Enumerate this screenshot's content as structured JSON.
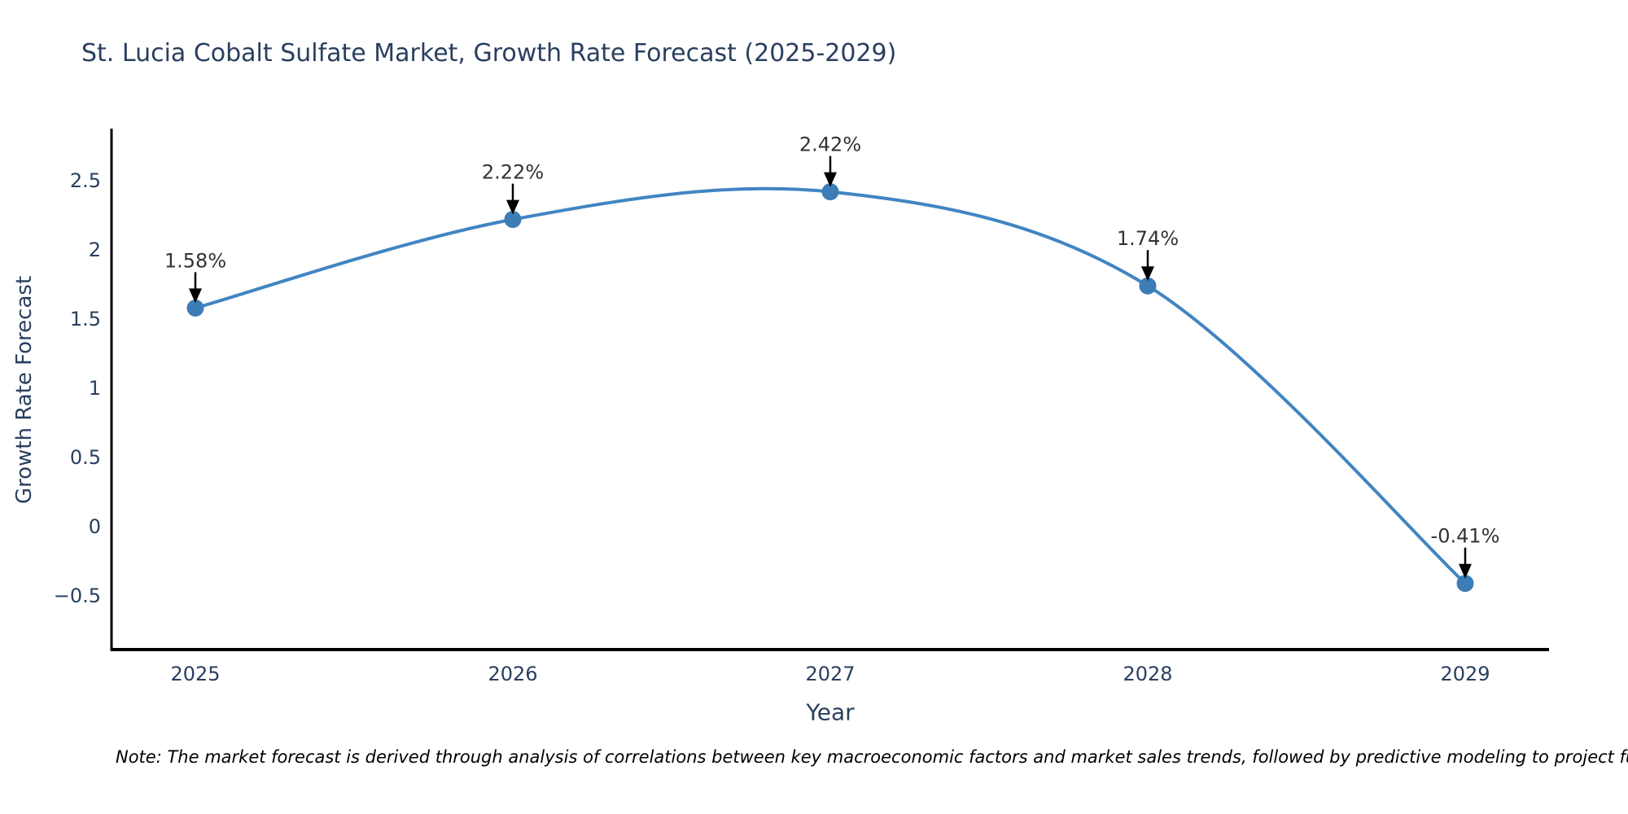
{
  "figure": {
    "note": "Note: The market forecast is derived through analysis of correlations between key macroeconomic factors and market sales trends, followed by predictive modeling to project future sales."
  },
  "chart_data": {
    "type": "line",
    "title": "St. Lucia Cobalt Sulfate Market, Growth Rate Forecast (2025-2029)",
    "xlabel": "Year",
    "ylabel": "Growth Rate Forecast",
    "categories": [
      "2025",
      "2026",
      "2027",
      "2028",
      "2029"
    ],
    "series": [
      {
        "name": "Growth Rate Forecast",
        "values": [
          1.58,
          2.22,
          2.42,
          1.74,
          -0.41
        ],
        "unit": "%"
      }
    ],
    "point_labels": [
      "1.58%",
      "2.22%",
      "2.42%",
      "1.74%",
      "-0.41%"
    ],
    "ytick_values": [
      -0.5,
      0,
      0.5,
      1,
      1.5,
      2,
      2.5
    ],
    "ytick_labels": [
      "−0.5",
      "0",
      "0.5",
      "1",
      "1.5",
      "2",
      "2.5"
    ],
    "ylim": [
      -0.9,
      2.88
    ],
    "line_shape": "spline",
    "marker": "circle",
    "grid": false,
    "legend": "none",
    "annotation_arrows": "black arrow pointing down to each data point",
    "colors": {
      "line": "#4185c2",
      "marker": "#3c7db8",
      "arrow": "#000000",
      "spine": "#000000",
      "title_text": "#2a3f5f",
      "axis_text": "#2a3f5f",
      "annotation_text": "#333333",
      "background": "#ffffff"
    }
  }
}
